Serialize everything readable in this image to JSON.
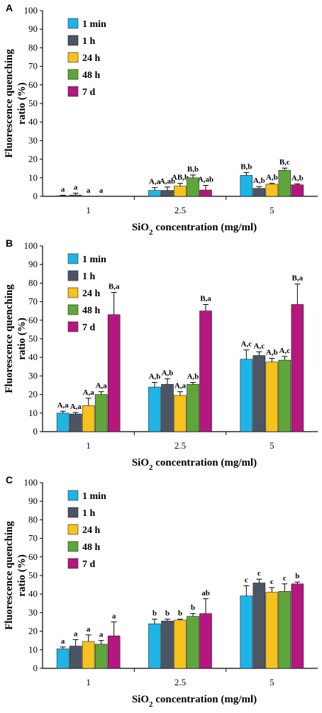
{
  "series_colors": [
    "#1fb4e6",
    "#4b5563",
    "#f7c21b",
    "#5fa63a",
    "#b5177e"
  ],
  "chart_data": [
    {
      "panel": "A",
      "type": "bar",
      "ylabel_line1": "Fluorescence quenching",
      "ylabel_line2": "ratio (%)",
      "xlabel_pre": "SiO",
      "xlabel_sub": "2",
      "xlabel_post": " concentration (mg/ml)",
      "categories": [
        "1",
        "2.5",
        "5"
      ],
      "ylim": [
        0,
        100
      ],
      "yticks": [
        "0",
        "10",
        "20",
        "30",
        "40",
        "50",
        "60",
        "70",
        "80",
        "90",
        "100"
      ],
      "series": [
        {
          "name": "1 min",
          "values": [
            0.3,
            3.2,
            11.3
          ],
          "errors": [
            0.3,
            1.5,
            1.5
          ],
          "labels": [
            "a",
            "A,a",
            "B,b"
          ]
        },
        {
          "name": "1 h",
          "values": [
            0.7,
            3.2,
            4.3
          ],
          "errors": [
            1.0,
            1.8,
            1.0
          ],
          "labels": [
            "a",
            "A,ab",
            "A,b"
          ]
        },
        {
          "name": "24 h",
          "values": [
            0,
            5.5,
            6.5
          ],
          "errors": [
            0,
            1.5,
            0.5
          ],
          "labels": [
            "a",
            "AB,b",
            "A,b"
          ]
        },
        {
          "name": "48 h",
          "values": [
            0,
            10.0,
            14.0
          ],
          "errors": [
            0,
            1.5,
            1.2
          ],
          "labels": [
            "a",
            "B,b",
            "B,c"
          ]
        },
        {
          "name": "7 d",
          "values": [
            0,
            3.4,
            6.2
          ],
          "errors": [
            0,
            2.5,
            0.5
          ],
          "labels": [
            "",
            "A,ab",
            "A,b"
          ]
        }
      ]
    },
    {
      "panel": "B",
      "type": "bar",
      "ylabel_line1": "Fluorescence quenching",
      "ylabel_line2": "ratio (%)",
      "xlabel_pre": "SiO",
      "xlabel_sub": "2",
      "xlabel_post": " concentration (mg/ml)",
      "categories": [
        "1",
        "2.5",
        "5"
      ],
      "ylim": [
        0,
        100
      ],
      "yticks": [
        "0",
        "10",
        "20",
        "30",
        "40",
        "50",
        "60",
        "70",
        "80",
        "90",
        "100"
      ],
      "series": [
        {
          "name": "1 min",
          "values": [
            10.0,
            24.0,
            39.0
          ],
          "errors": [
            1.0,
            2.5,
            5.0
          ],
          "labels": [
            "A,a",
            "A,b",
            "A,c"
          ]
        },
        {
          "name": "1 h",
          "values": [
            9.5,
            25.5,
            41.0
          ],
          "errors": [
            0.8,
            3.0,
            2.0
          ],
          "labels": [
            "A,a",
            "A,b",
            "A,c"
          ]
        },
        {
          "name": "24 h",
          "values": [
            14.0,
            19.5,
            37.5
          ],
          "errors": [
            4.0,
            2.0,
            2.0
          ],
          "labels": [
            "A,a",
            "A,a",
            "A,b"
          ]
        },
        {
          "name": "48 h",
          "values": [
            20.0,
            25.5,
            38.5
          ],
          "errors": [
            1.5,
            1.0,
            2.0
          ],
          "labels": [
            "A,a",
            "A,b",
            "A,c"
          ]
        },
        {
          "name": "7 d",
          "values": [
            63.0,
            65.0,
            68.5
          ],
          "errors": [
            12.0,
            3.5,
            11.0
          ],
          "labels": [
            "B,a",
            "B,a",
            "B,a"
          ]
        }
      ]
    },
    {
      "panel": "C",
      "type": "bar",
      "ylabel_line1": "Fluorescence quenching",
      "ylabel_line2": "ratio (%)",
      "xlabel_pre": "SiO",
      "xlabel_sub": "2",
      "xlabel_post": " concentration (mg/ml)",
      "categories": [
        "1",
        "2.5",
        "5"
      ],
      "ylim": [
        0,
        100
      ],
      "yticks": [
        "0",
        "10",
        "20",
        "30",
        "40",
        "50",
        "60",
        "70",
        "80",
        "90",
        "100"
      ],
      "series": [
        {
          "name": "1 min",
          "values": [
            10.5,
            24.0,
            39.0
          ],
          "errors": [
            1.0,
            2.5,
            5.5
          ],
          "labels": [
            "a",
            "b",
            "c"
          ]
        },
        {
          "name": "1 h",
          "values": [
            12.0,
            25.5,
            46.0
          ],
          "errors": [
            3.5,
            1.0,
            2.0
          ],
          "labels": [
            "a",
            "b",
            "c"
          ]
        },
        {
          "name": "24 h",
          "values": [
            14.5,
            26.0,
            41.0
          ],
          "errors": [
            3.5,
            0.5,
            2.5
          ],
          "labels": [
            "a",
            "b",
            "c"
          ]
        },
        {
          "name": "48 h",
          "values": [
            13.0,
            28.0,
            41.5
          ],
          "errors": [
            2.0,
            1.5,
            4.0
          ],
          "labels": [
            "a",
            "b",
            "c"
          ]
        },
        {
          "name": "7 d",
          "values": [
            17.5,
            29.5,
            45.5
          ],
          "errors": [
            7.5,
            8.0,
            1.0
          ],
          "labels": [
            "a",
            "ab",
            "b"
          ]
        }
      ]
    }
  ]
}
